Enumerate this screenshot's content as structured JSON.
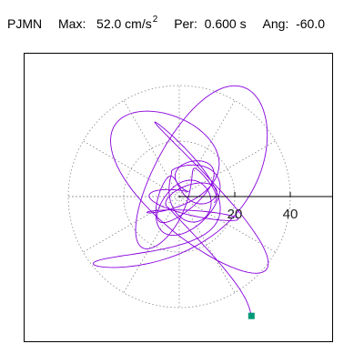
{
  "header": {
    "station": "PJMN",
    "max_label": "Max:",
    "max_value": "52.0 cm/s",
    "max_exp": "2",
    "per_label": "Per:",
    "per_value": "0.600 s",
    "ang_label": "Ang:",
    "ang_value": "-60.0"
  },
  "colors": {
    "trace": "#8800dd",
    "marker": "#009977",
    "grid": "#888888",
    "axis": "#000000"
  },
  "chart_data": {
    "type": "scatter",
    "description_type": "polar particle-motion hodogram",
    "title": "",
    "xlabel": "",
    "ylabel": "",
    "radial_ticks": [
      20,
      40
    ],
    "radial_tick_labels": [
      "20",
      "40"
    ],
    "rmax": 52.0,
    "grid": true,
    "grid_style": "dotted circles and radial spokes every 30 degrees",
    "axis_angle_deg": -60.0,
    "end_point": {
      "x": 26,
      "y": -43
    },
    "trace_samples": 900,
    "trace_seed": 7
  }
}
